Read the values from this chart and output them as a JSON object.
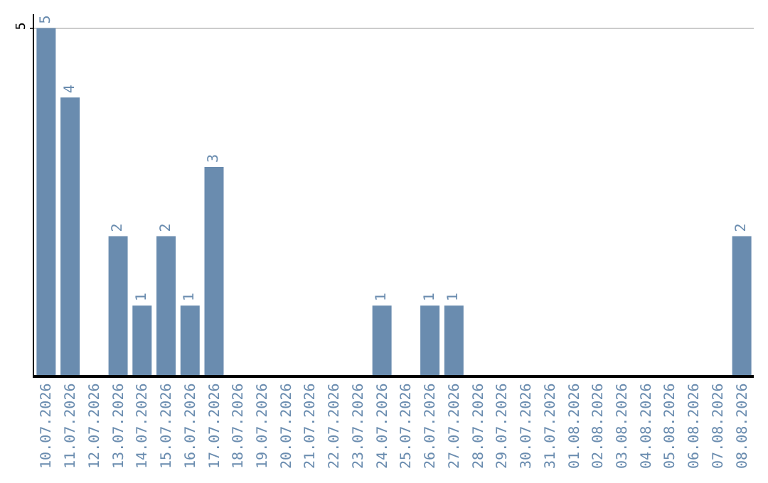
{
  "chart_data": {
    "type": "bar",
    "categories": [
      "10.07.2026",
      "11.07.2026",
      "12.07.2026",
      "13.07.2026",
      "14.07.2026",
      "15.07.2026",
      "16.07.2026",
      "17.07.2026",
      "18.07.2026",
      "19.07.2026",
      "20.07.2026",
      "21.07.2026",
      "22.07.2026",
      "23.07.2026",
      "24.07.2026",
      "25.07.2026",
      "26.07.2026",
      "27.07.2026",
      "28.07.2026",
      "29.07.2026",
      "30.07.2026",
      "31.07.2026",
      "01.08.2026",
      "02.08.2026",
      "03.08.2026",
      "04.08.2026",
      "05.08.2026",
      "06.08.2026",
      "07.08.2026",
      "08.08.2026"
    ],
    "values": [
      5,
      4,
      0,
      2,
      1,
      2,
      1,
      3,
      0,
      0,
      0,
      0,
      0,
      0,
      1,
      0,
      1,
      1,
      0,
      0,
      0,
      0,
      0,
      0,
      0,
      0,
      0,
      0,
      0,
      2
    ],
    "value_labels": [
      "5",
      "4",
      null,
      "2",
      "1",
      "2",
      "1",
      "3",
      null,
      null,
      null,
      null,
      null,
      null,
      "1",
      null,
      "1",
      "1",
      null,
      null,
      null,
      null,
      null,
      null,
      null,
      null,
      null,
      null,
      null,
      "2"
    ],
    "color": "#6a8caf",
    "ylim": [
      0,
      5.2
    ],
    "yticks": [
      5
    ],
    "grid": "y",
    "legend": false
  }
}
